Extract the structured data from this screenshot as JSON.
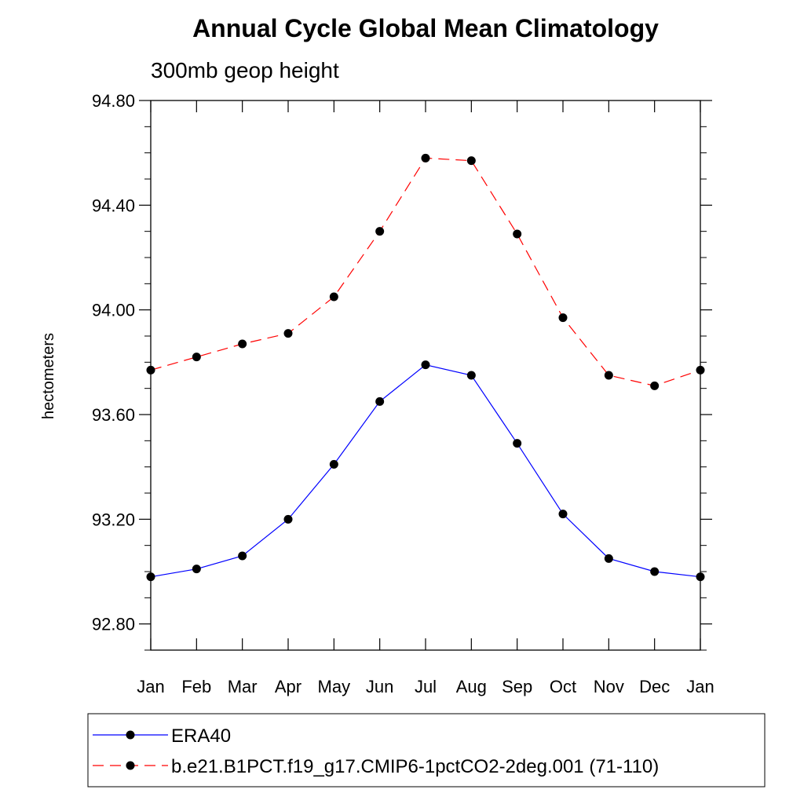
{
  "chart_data": {
    "type": "line",
    "title": "Annual Cycle Global Mean Climatology",
    "subtitle": "300mb geop height",
    "xlabel": "",
    "ylabel": "hectometers",
    "categories": [
      "Jan",
      "Feb",
      "Mar",
      "Apr",
      "May",
      "Jun",
      "Jul",
      "Aug",
      "Sep",
      "Oct",
      "Nov",
      "Dec",
      "Jan"
    ],
    "ylim": [
      92.7,
      94.8
    ],
    "yticks": [
      92.8,
      93.2,
      93.6,
      94.0,
      94.4,
      94.8
    ],
    "ytick_labels": [
      "92.80",
      "93.20",
      "93.60",
      "94.00",
      "94.40",
      "94.80"
    ],
    "grid": false,
    "series": [
      {
        "name": "ERA40",
        "color": "#0000ff",
        "dash": "solid",
        "marker": "filled-circle",
        "values": [
          92.98,
          93.01,
          93.06,
          93.2,
          93.41,
          93.65,
          93.79,
          93.75,
          93.49,
          93.22,
          93.05,
          93.0,
          92.98
        ]
      },
      {
        "name": "b.e21.B1PCT.f19_g17.CMIP6-1pctCO2-2deg.001 (71-110)",
        "color": "#ff0000",
        "dash": "dashed",
        "marker": "filled-circle",
        "values": [
          93.77,
          93.82,
          93.87,
          93.91,
          94.05,
          94.3,
          94.58,
          94.57,
          94.29,
          93.97,
          93.75,
          93.71,
          93.77
        ]
      }
    ],
    "legend_position": "bottom-left"
  }
}
